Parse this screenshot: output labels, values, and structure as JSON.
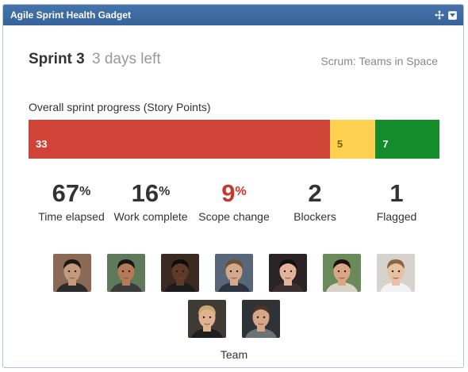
{
  "gadget": {
    "title": "Agile Sprint Health Gadget"
  },
  "sprint": {
    "name": "Sprint 3",
    "days_left": "3 days left",
    "board": "Scrum: Teams in Space"
  },
  "progress": {
    "label": "Overall sprint progress (Story Points)",
    "segments": [
      {
        "value": 33,
        "label": "33",
        "color": "#d04437"
      },
      {
        "value": 5,
        "label": "5",
        "color": "#fdd04f"
      },
      {
        "value": 7,
        "label": "7",
        "color": "#148c2b"
      }
    ]
  },
  "stats": [
    {
      "value": "67",
      "suffix": "%",
      "label": "Time elapsed",
      "color": "#333333"
    },
    {
      "value": "16",
      "suffix": "%",
      "label": "Work complete",
      "color": "#333333"
    },
    {
      "value": "9",
      "suffix": "%",
      "label": "Scope change",
      "color": "#c8372b"
    },
    {
      "value": "2",
      "suffix": "",
      "label": "Blockers",
      "color": "#333333"
    },
    {
      "value": "1",
      "suffix": "",
      "label": "Flagged",
      "color": "#333333"
    }
  ],
  "team": {
    "label": "Team",
    "members": [
      {
        "icon": "avatar-1",
        "bg": "#8a6a55",
        "skin": "#c49a7c",
        "hair": "#1d1714",
        "shirt": "#2b2b2b"
      },
      {
        "icon": "avatar-2",
        "bg": "#5e7a5a",
        "skin": "#b57a58",
        "hair": "#1c1410",
        "shirt": "#3b3b3b"
      },
      {
        "icon": "avatar-3",
        "bg": "#3a2a22",
        "skin": "#5e3b28",
        "hair": "#120c09",
        "shirt": "#1b1b1b"
      },
      {
        "icon": "avatar-4",
        "bg": "#58667a",
        "skin": "#d4a88a",
        "hair": "#6b5036",
        "shirt": "#2c3444"
      },
      {
        "icon": "avatar-5",
        "bg": "#2a2426",
        "skin": "#e2b59a",
        "hair": "#141012",
        "shirt": "#3a2e30"
      },
      {
        "icon": "avatar-6",
        "bg": "#6b8a5a",
        "skin": "#d9a786",
        "hair": "#1a1210",
        "shirt": "#d7d3c8"
      },
      {
        "icon": "avatar-7",
        "bg": "#d6d2cc",
        "skin": "#e8c0a4",
        "hair": "#8a6444",
        "shirt": "#f2f2f2"
      },
      {
        "icon": "avatar-8",
        "bg": "#3f3a34",
        "skin": "#e0b292",
        "hair": "#c9a66e",
        "shirt": "#1e1e1e"
      },
      {
        "icon": "avatar-9",
        "bg": "#2e3338",
        "skin": "#d5a688",
        "hair": "#4a3526",
        "shirt": "#6d7275"
      }
    ]
  }
}
